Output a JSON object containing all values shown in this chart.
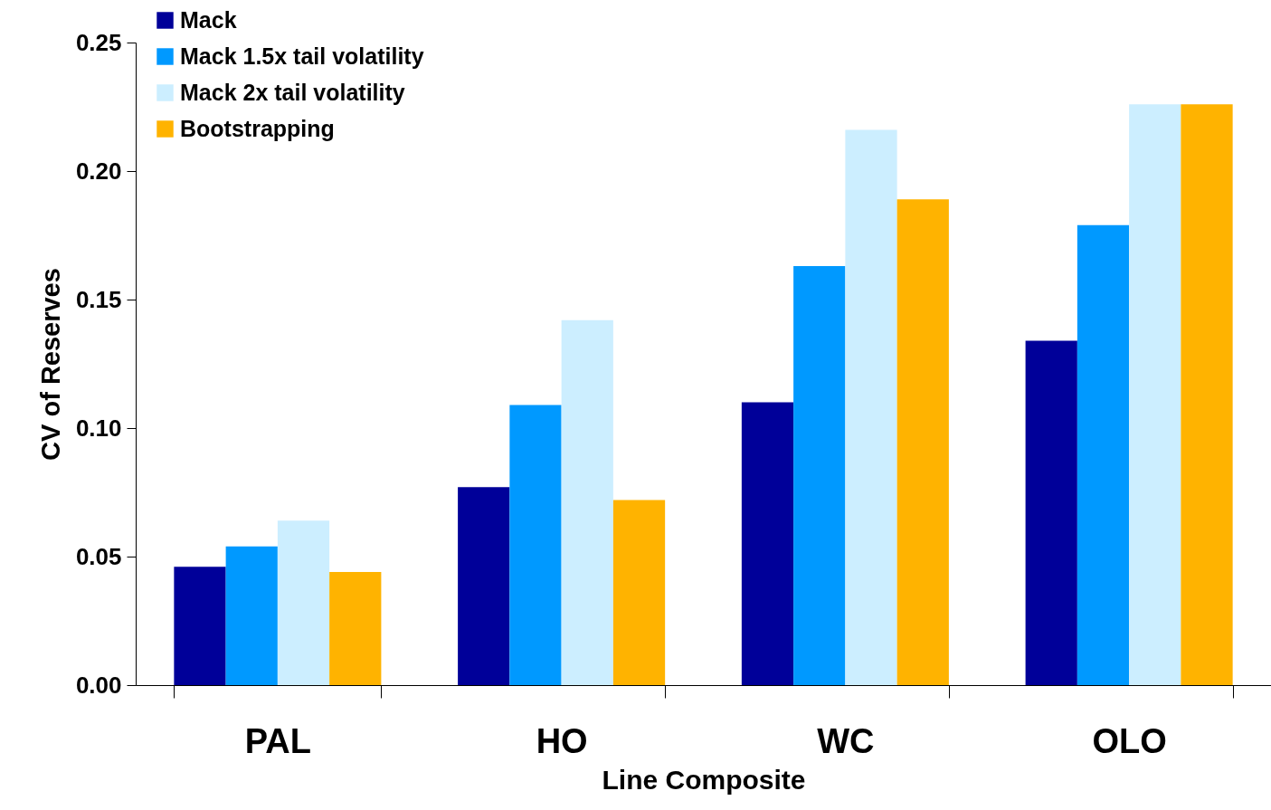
{
  "chart_data": {
    "type": "bar",
    "xlabel": "Line Composite",
    "ylabel": "CV of Reserves",
    "categories": [
      "PAL",
      "HO",
      "WC",
      "OLO"
    ],
    "series": [
      {
        "name": "Mack",
        "color": "#000099",
        "values": [
          0.046,
          0.077,
          0.11,
          0.134
        ]
      },
      {
        "name": "Mack 1.5x tail volatility",
        "color": "#0099ff",
        "values": [
          0.054,
          0.109,
          0.163,
          0.179
        ]
      },
      {
        "name": "Mack 2x tail volatility",
        "color": "#cceeff",
        "values": [
          0.064,
          0.142,
          0.216,
          0.226
        ]
      },
      {
        "name": "Bootstrapping",
        "color": "#ffb300",
        "values": [
          0.044,
          0.072,
          0.189,
          0.226
        ]
      }
    ],
    "ylim": [
      0,
      0.25
    ],
    "yticks": [
      {
        "value": 0,
        "label": "0.00"
      },
      {
        "value": 0.05,
        "label": "0.05"
      },
      {
        "value": 0.1,
        "label": "0.10"
      },
      {
        "value": 0.15,
        "label": "0.15"
      },
      {
        "value": 0.2,
        "label": "0.20"
      },
      {
        "value": 0.25,
        "label": "0.25"
      }
    ],
    "grid": false,
    "legend": "top left"
  }
}
